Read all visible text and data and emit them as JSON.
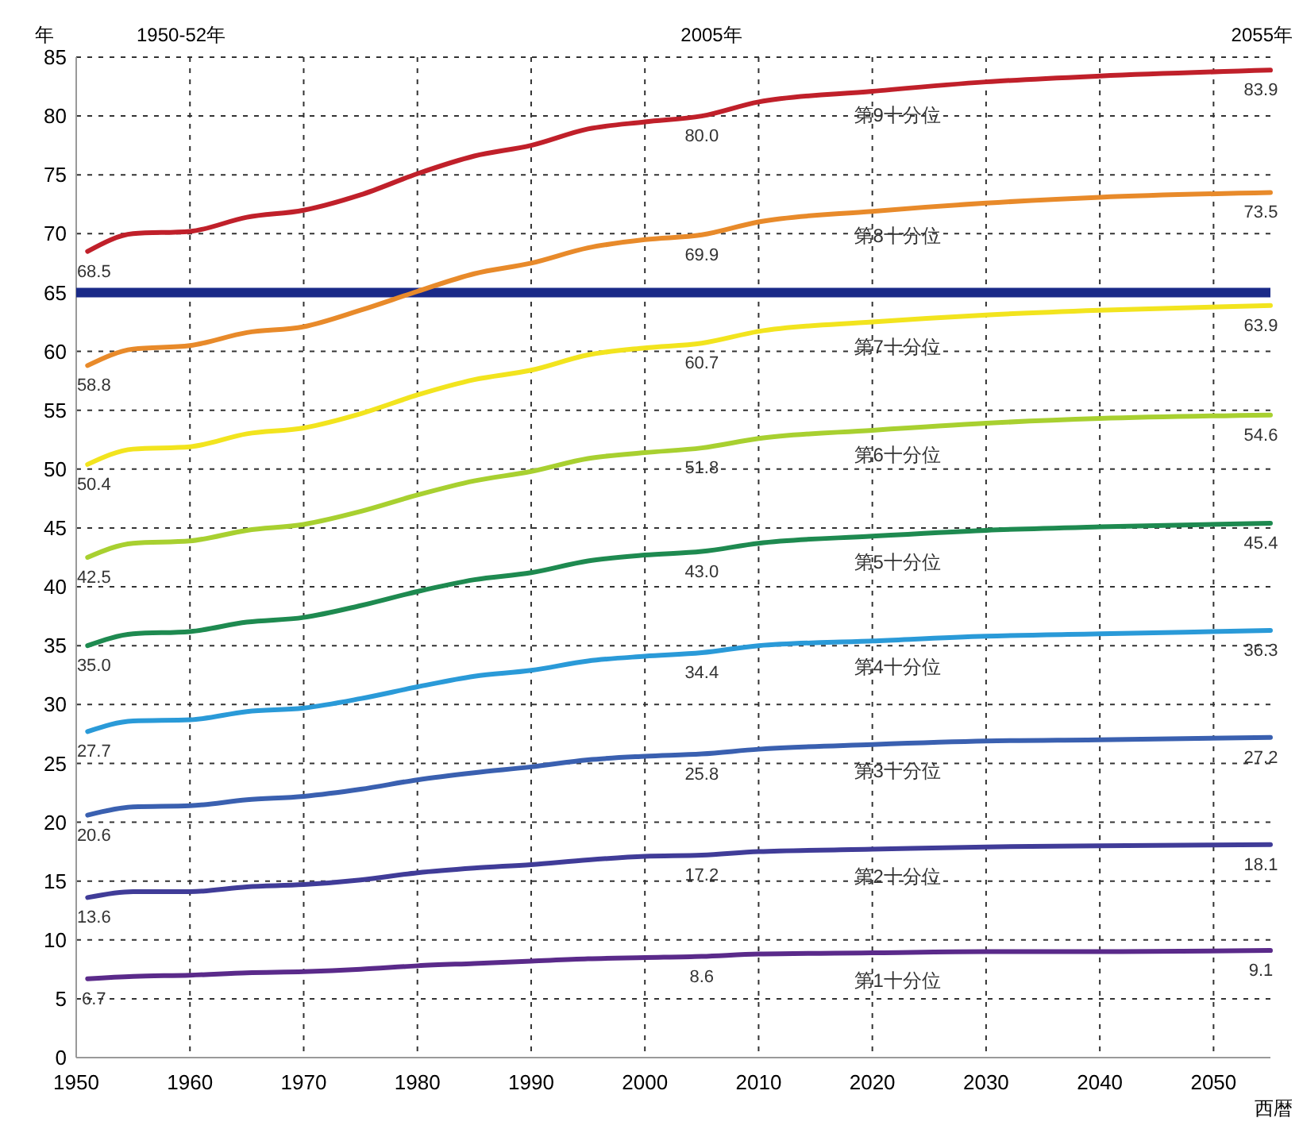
{
  "chart_data": {
    "type": "line",
    "ylabel": "年",
    "xlabel": "西暦",
    "x": [
      1951,
      1955,
      1960,
      1965,
      1970,
      1975,
      1980,
      1985,
      1990,
      1995,
      2000,
      2005,
      2010,
      2020,
      2030,
      2040,
      2055
    ],
    "xlim": [
      1950,
      2055
    ],
    "xticks": [
      1950,
      1960,
      1970,
      1980,
      1990,
      2000,
      2010,
      2020,
      2030,
      2040,
      2050
    ],
    "ylim": [
      0,
      85
    ],
    "yticks": [
      0,
      5,
      10,
      15,
      20,
      25,
      30,
      35,
      40,
      45,
      50,
      55,
      60,
      65,
      70,
      75,
      80,
      85
    ],
    "grid": true,
    "line_style": "solid",
    "marker": "none",
    "annotations": [
      "1950-52年",
      "2005年",
      "2055年"
    ],
    "ref_lines": [
      {
        "axis": "y",
        "value": 65,
        "color": "#1a2a88"
      }
    ],
    "series": [
      {
        "name": "第9十分位",
        "color": "#c0202a",
        "values": [
          68.5,
          70.0,
          70.2,
          71.4,
          72.0,
          73.3,
          75.1,
          76.6,
          77.5,
          78.9,
          79.5,
          80.0,
          81.2,
          82.1,
          82.9,
          83.4,
          83.9
        ],
        "value_labels": [
          "68.5",
          null,
          null,
          null,
          null,
          null,
          null,
          null,
          null,
          null,
          null,
          "80.0",
          null,
          null,
          null,
          null,
          "83.9"
        ]
      },
      {
        "name": "第8十分位",
        "color": "#e88a2a",
        "values": [
          58.8,
          60.2,
          60.5,
          61.6,
          62.1,
          63.5,
          65.1,
          66.6,
          67.5,
          68.8,
          69.5,
          69.9,
          71.0,
          71.9,
          72.6,
          73.1,
          73.5
        ],
        "value_labels": [
          "58.8",
          null,
          null,
          null,
          null,
          null,
          null,
          null,
          null,
          null,
          null,
          "69.9",
          null,
          null,
          null,
          null,
          "73.5"
        ]
      },
      {
        "name": "第7十分位",
        "color": "#f2e41e",
        "values": [
          50.4,
          51.7,
          51.9,
          53.0,
          53.5,
          54.7,
          56.3,
          57.6,
          58.4,
          59.7,
          60.3,
          60.7,
          61.7,
          62.5,
          63.1,
          63.5,
          63.9
        ],
        "value_labels": [
          "50.4",
          null,
          null,
          null,
          null,
          null,
          null,
          null,
          null,
          null,
          null,
          "60.7",
          null,
          null,
          null,
          null,
          "63.9"
        ]
      },
      {
        "name": "第6十分位",
        "color": "#a8d030",
        "values": [
          42.5,
          43.7,
          43.9,
          44.8,
          45.3,
          46.4,
          47.8,
          49.0,
          49.8,
          50.9,
          51.4,
          51.8,
          52.6,
          53.3,
          53.9,
          54.3,
          54.6
        ],
        "value_labels": [
          "42.5",
          null,
          null,
          null,
          null,
          null,
          null,
          null,
          null,
          null,
          null,
          "51.8",
          null,
          null,
          null,
          null,
          "54.6"
        ]
      },
      {
        "name": "第5十分位",
        "color": "#1e8a50",
        "values": [
          35.0,
          36.0,
          36.2,
          37.0,
          37.4,
          38.4,
          39.6,
          40.6,
          41.2,
          42.2,
          42.7,
          43.0,
          43.7,
          44.3,
          44.8,
          45.1,
          45.4
        ],
        "value_labels": [
          "35.0",
          null,
          null,
          null,
          null,
          null,
          null,
          null,
          null,
          null,
          null,
          "43.0",
          null,
          null,
          null,
          null,
          "45.4"
        ]
      },
      {
        "name": "第4十分位",
        "color": "#2a9ad8",
        "values": [
          27.7,
          28.6,
          28.7,
          29.4,
          29.7,
          30.5,
          31.5,
          32.4,
          32.9,
          33.7,
          34.1,
          34.4,
          35.0,
          35.4,
          35.8,
          36.0,
          36.3
        ],
        "value_labels": [
          "27.7",
          null,
          null,
          null,
          null,
          null,
          null,
          null,
          null,
          null,
          null,
          "34.4",
          null,
          null,
          null,
          null,
          "36.3"
        ]
      },
      {
        "name": "第3十分位",
        "color": "#3a60b0",
        "values": [
          20.6,
          21.3,
          21.4,
          21.9,
          22.2,
          22.8,
          23.6,
          24.2,
          24.7,
          25.3,
          25.6,
          25.8,
          26.2,
          26.6,
          26.9,
          27.0,
          27.2
        ],
        "value_labels": [
          "20.6",
          null,
          null,
          null,
          null,
          null,
          null,
          null,
          null,
          null,
          null,
          "25.8",
          null,
          null,
          null,
          null,
          "27.2"
        ]
      },
      {
        "name": "第2十分位",
        "color": "#403c98",
        "values": [
          13.6,
          14.1,
          14.1,
          14.5,
          14.7,
          15.1,
          15.7,
          16.1,
          16.4,
          16.8,
          17.1,
          17.2,
          17.5,
          17.7,
          17.9,
          18.0,
          18.1
        ],
        "value_labels": [
          "13.6",
          null,
          null,
          null,
          null,
          null,
          null,
          null,
          null,
          null,
          null,
          "17.2",
          null,
          null,
          null,
          null,
          "18.1"
        ]
      },
      {
        "name": "第1十分位",
        "color": "#5a2a8a",
        "values": [
          6.7,
          6.9,
          7.0,
          7.2,
          7.3,
          7.5,
          7.8,
          8.0,
          8.2,
          8.4,
          8.5,
          8.6,
          8.8,
          8.9,
          9.0,
          9.0,
          9.1
        ],
        "value_labels": [
          "6.7",
          null,
          null,
          null,
          null,
          null,
          null,
          null,
          null,
          null,
          null,
          "8.6",
          null,
          null,
          null,
          null,
          "9.1"
        ]
      }
    ]
  }
}
